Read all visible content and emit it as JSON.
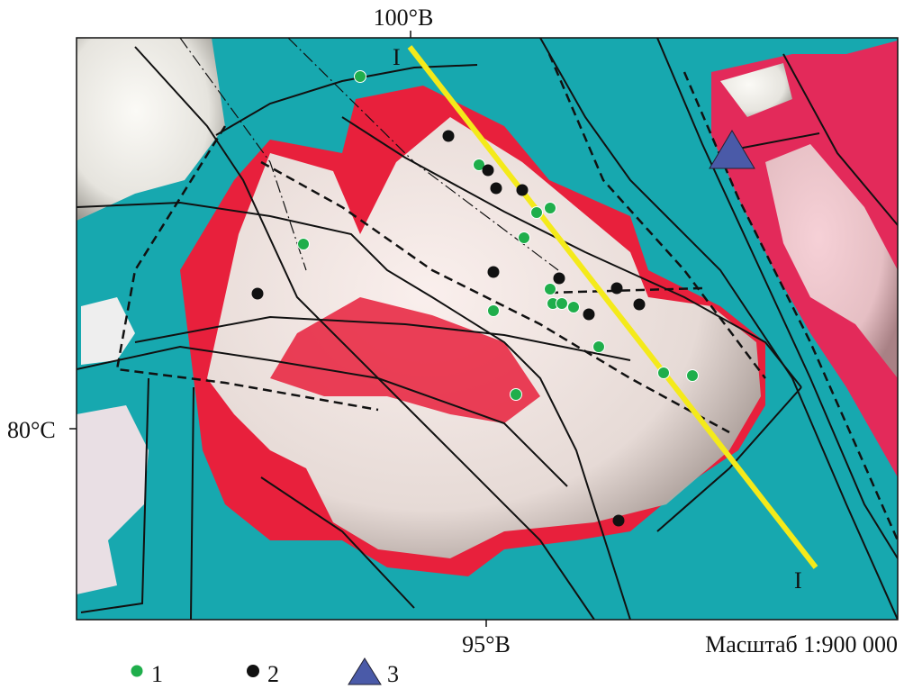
{
  "map": {
    "labels": {
      "top_longitude": "100°B",
      "bottom_longitude": "95°B",
      "latitude": "80°C",
      "profile_start": "I",
      "profile_end": "I",
      "scale": "Масштаб 1:900 000"
    },
    "legend": [
      {
        "label": "1"
      },
      {
        "label": "2"
      },
      {
        "label": "3"
      }
    ]
  }
}
